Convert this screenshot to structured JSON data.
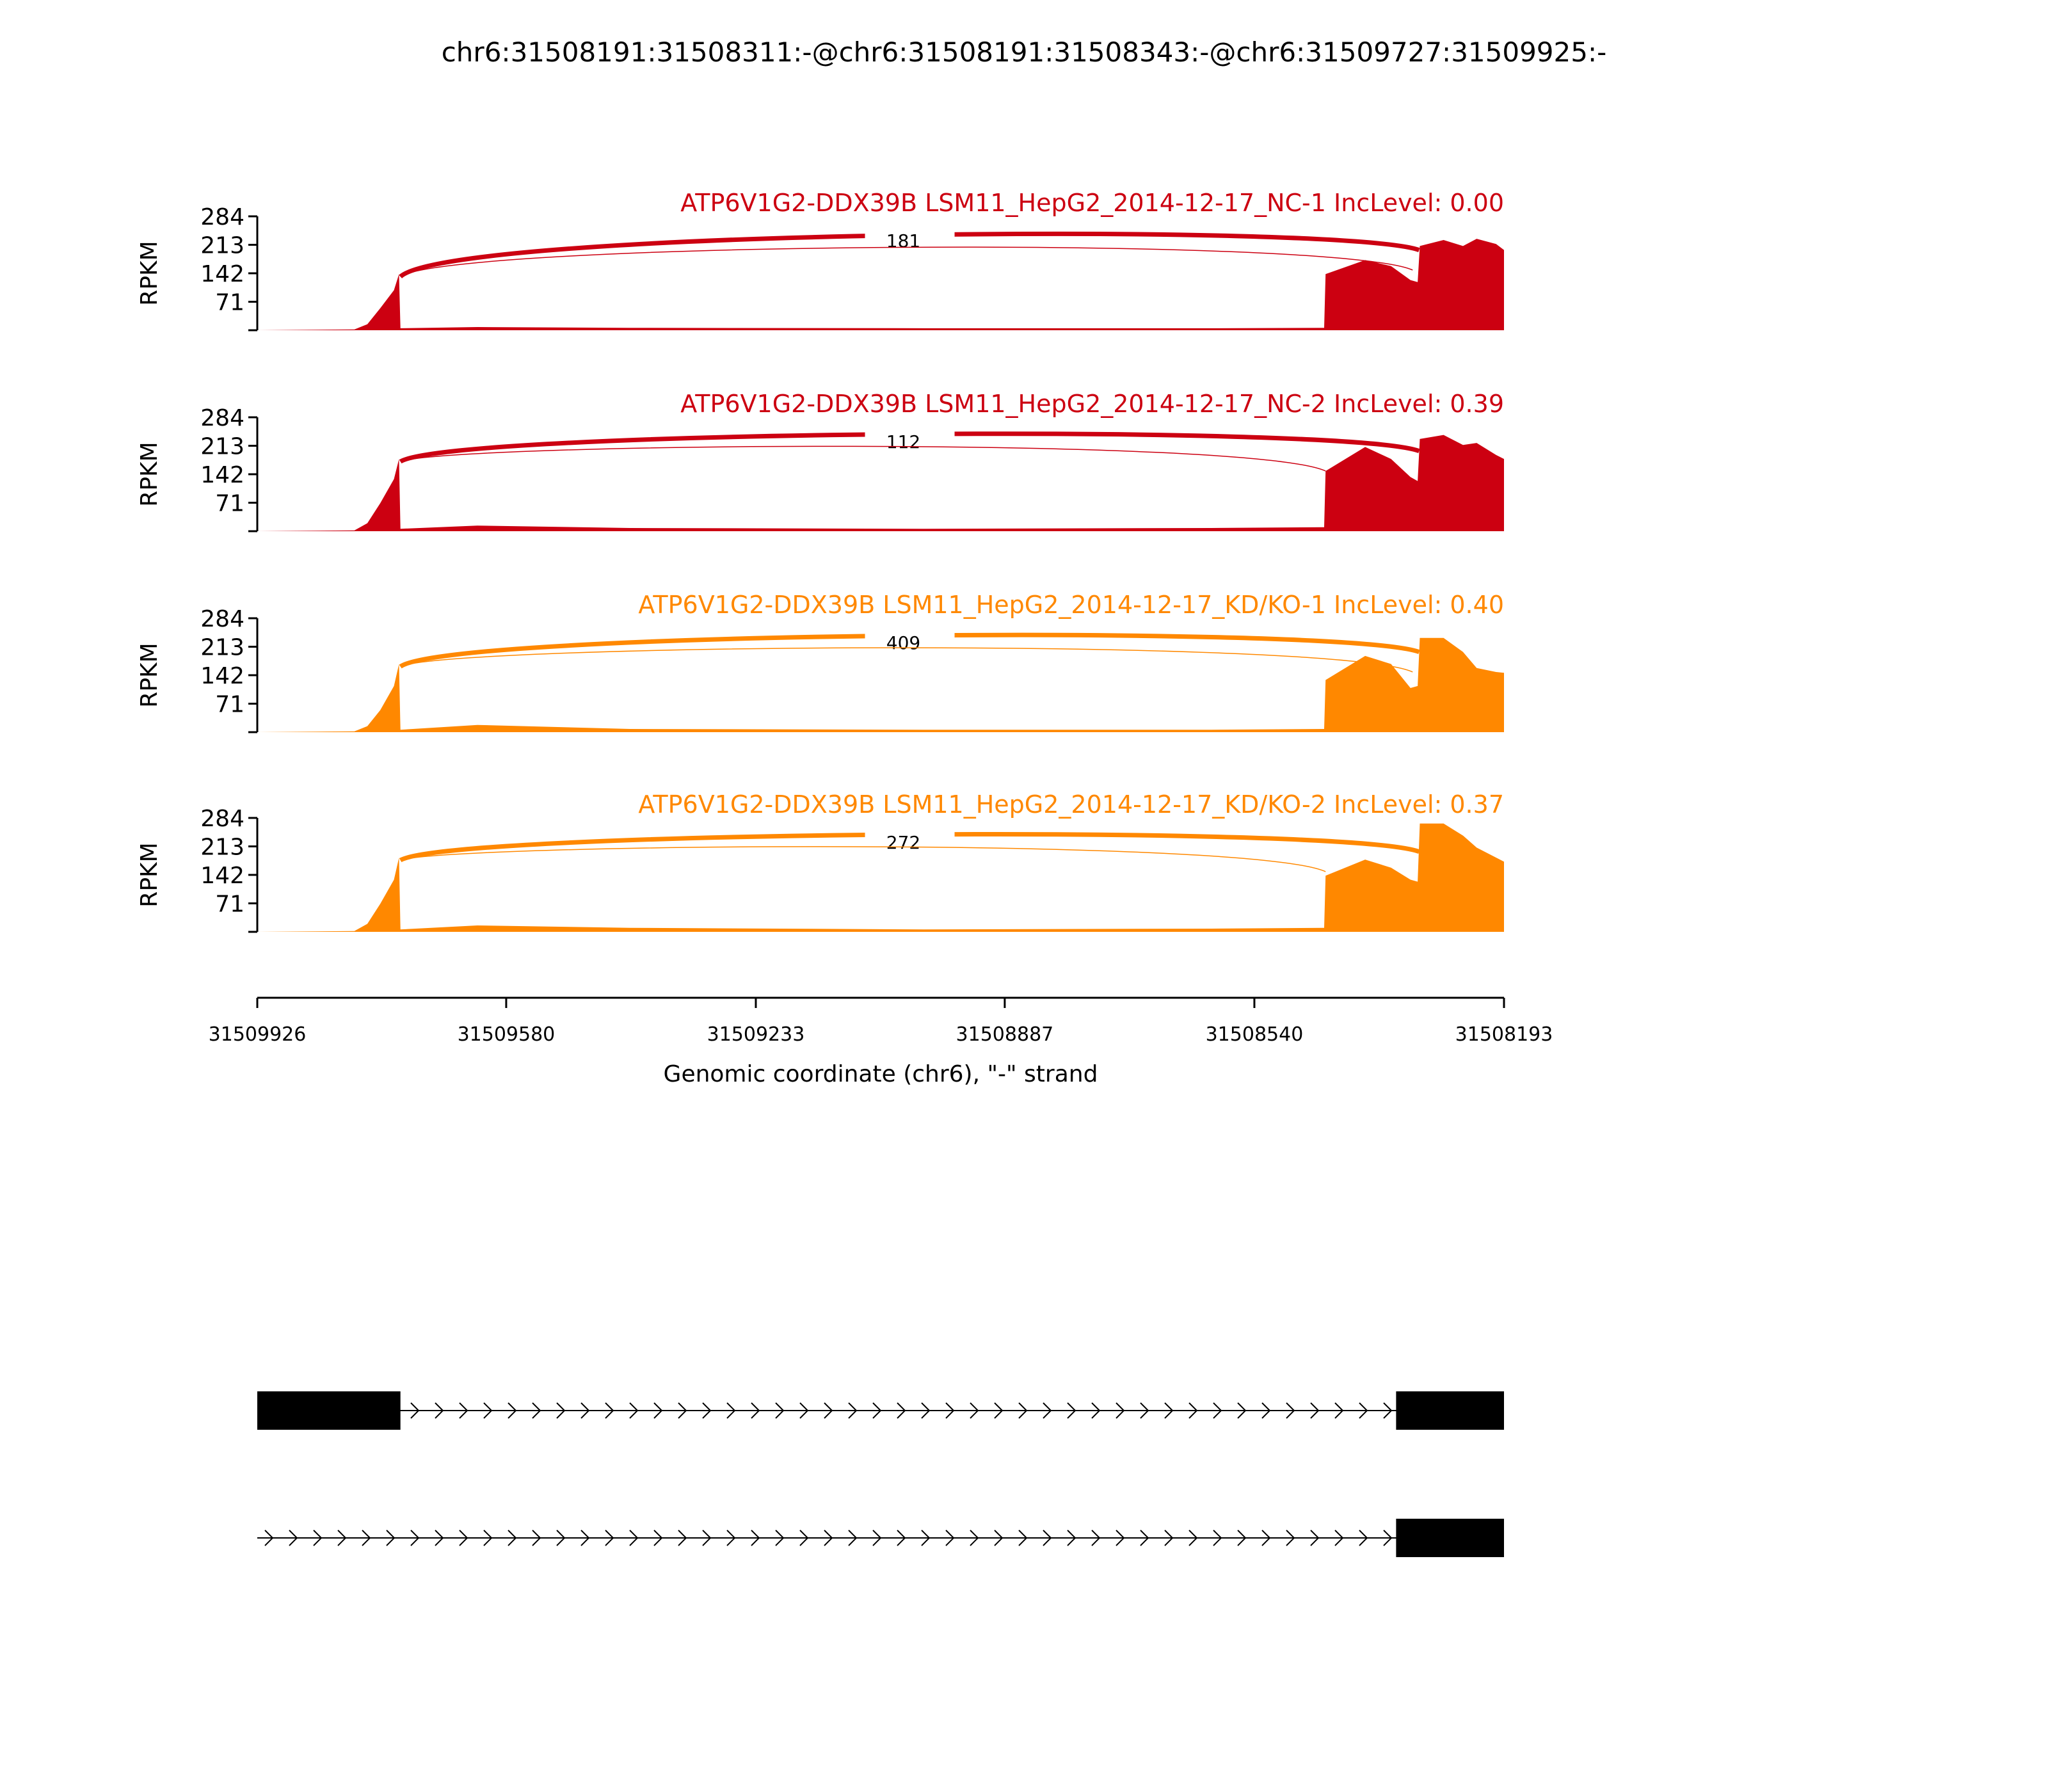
{
  "title": "chr6:31508191:31508311:-@chr6:31508191:31508343:-@chr6:31509727:31509925:-",
  "chart_data": {
    "type": "area",
    "xlabel": "Genomic coordinate (chr6), \"-\" strand",
    "ylabel": "RPKM",
    "xlim": [
      31509926,
      31508193
    ],
    "x_reversed": true,
    "xticks": [
      "31509926",
      "31509580",
      "31509233",
      "31508887",
      "31508540",
      "31508193"
    ],
    "xtick_values": [
      31509926,
      31509580,
      31509233,
      31508887,
      31508540,
      31508193
    ],
    "ylim": [
      0,
      284
    ],
    "yticks": [
      "71",
      "142",
      "213",
      "284"
    ],
    "ytick_values": [
      71,
      142,
      213,
      284
    ],
    "coverage_x": [
      31509926,
      31509791,
      31509773,
      31509755,
      31509736,
      31509729,
      31509727,
      31509620,
      31509408,
      31509000,
      31508600,
      31508443,
      31508441,
      31508386,
      31508350,
      31508323,
      31508313,
      31508310,
      31508277,
      31508250,
      31508231,
      31508204,
      31508193
    ],
    "series": [
      {
        "name": "ATP6V1G2-DDX39B LSM11_HepG2_2014-12-17_NC-1 IncLevel: 0.00",
        "color": "#cc0011",
        "values": [
          0,
          2,
          15,
          55,
          100,
          140,
          5,
          8,
          6,
          5,
          5,
          6,
          140,
          175,
          160,
          125,
          120,
          210,
          225,
          210,
          228,
          215,
          200
        ],
        "junctions": [
          {
            "from": 31509727,
            "to": 31508311,
            "count": "181",
            "weight": "thick"
          },
          {
            "from": 31509727,
            "to": 31508320,
            "count": "",
            "weight": "thin"
          }
        ]
      },
      {
        "name": "ATP6V1G2-DDX39B LSM11_HepG2_2014-12-17_NC-2 IncLevel: 0.39",
        "color": "#cc0011",
        "values": [
          0,
          2,
          20,
          70,
          130,
          180,
          6,
          14,
          8,
          6,
          8,
          10,
          150,
          210,
          180,
          135,
          125,
          230,
          240,
          215,
          220,
          190,
          180
        ],
        "junctions": [
          {
            "from": 31509727,
            "to": 31508311,
            "count": "112",
            "weight": "thick"
          },
          {
            "from": 31509727,
            "to": 31508441,
            "count": "",
            "weight": "thin"
          }
        ]
      },
      {
        "name": "ATP6V1G2-DDX39B LSM11_HepG2_2014-12-17_KD/KO-1 IncLevel: 0.40",
        "color": "#ff8800",
        "values": [
          0,
          2,
          15,
          55,
          115,
          170,
          6,
          18,
          8,
          6,
          6,
          8,
          130,
          190,
          170,
          110,
          115,
          235,
          235,
          200,
          160,
          150,
          148
        ],
        "junctions": [
          {
            "from": 31509727,
            "to": 31508311,
            "count": "409",
            "weight": "thick"
          },
          {
            "from": 31509727,
            "to": 31508320,
            "count": "",
            "weight": "thin"
          }
        ]
      },
      {
        "name": "ATP6V1G2-DDX39B LSM11_HepG2_2014-12-17_KD/KO-2 IncLevel: 0.37",
        "color": "#ff8800",
        "values": [
          0,
          2,
          20,
          70,
          130,
          185,
          6,
          16,
          10,
          6,
          8,
          10,
          140,
          180,
          160,
          130,
          125,
          270,
          270,
          240,
          210,
          185,
          175
        ],
        "junctions": [
          {
            "from": 31509727,
            "to": 31508311,
            "count": "272",
            "weight": "thick"
          },
          {
            "from": 31509727,
            "to": 31508441,
            "count": "",
            "weight": "thin"
          }
        ]
      }
    ],
    "transcripts": [
      {
        "exons": [
          [
            31509926,
            31509727
          ],
          [
            31508343,
            31508193
          ]
        ]
      },
      {
        "exons": [
          [
            31508343,
            31508193
          ]
        ],
        "intron_start": 31509926
      }
    ]
  }
}
